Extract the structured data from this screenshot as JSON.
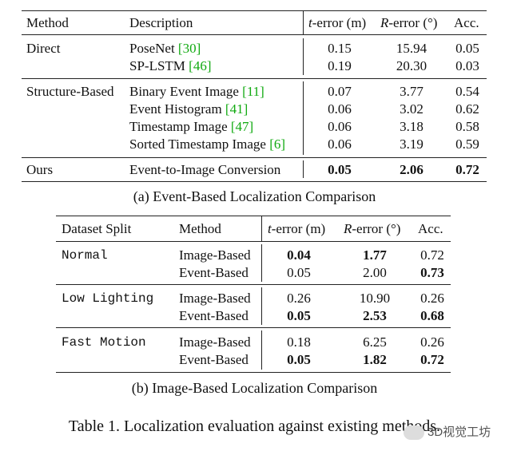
{
  "table_a": {
    "headers": {
      "method": "Method",
      "description": "Description",
      "t_error_var": "t",
      "t_error_rest": "-error (m)",
      "r_error_var": "R",
      "r_error_rest": "-error (°)",
      "acc": "Acc."
    },
    "groups": [
      {
        "method": "Direct",
        "rows": [
          {
            "desc": "PoseNet ",
            "ref": "[30]",
            "t": "0.15",
            "r": "15.94",
            "acc": "0.05"
          },
          {
            "desc": "SP-LSTM ",
            "ref": "[46]",
            "t": "0.19",
            "r": "20.30",
            "acc": "0.03"
          }
        ]
      },
      {
        "method": "Structure-Based",
        "rows": [
          {
            "desc": "Binary Event Image ",
            "ref": "[11]",
            "t": "0.07",
            "r": "3.77",
            "acc": "0.54"
          },
          {
            "desc": "Event Histogram ",
            "ref": "[41]",
            "t": "0.06",
            "r": "3.02",
            "acc": "0.62"
          },
          {
            "desc": "Timestamp Image ",
            "ref": "[47]",
            "t": "0.06",
            "r": "3.18",
            "acc": "0.58"
          },
          {
            "desc": "Sorted Timestamp Image ",
            "ref": "[6]",
            "t": "0.06",
            "r": "3.19",
            "acc": "0.59"
          }
        ]
      },
      {
        "method": "Ours",
        "rows": [
          {
            "desc": "Event-to-Image Conversion",
            "ref": "",
            "t": "0.05",
            "r": "2.06",
            "acc": "0.72"
          }
        ]
      }
    ],
    "caption": "(a) Event-Based Localization Comparison"
  },
  "table_b": {
    "headers": {
      "split": "Dataset Split",
      "method": "Method",
      "t_error_var": "t",
      "t_error_rest": "-error (m)",
      "r_error_var": "R",
      "r_error_rest": "-error (°)",
      "acc": "Acc."
    },
    "groups": [
      {
        "split": "Normal",
        "rows": [
          {
            "method": "Image-Based",
            "t": "0.04",
            "r": "1.77",
            "acc": "0.72"
          },
          {
            "method": "Event-Based",
            "t": "0.05",
            "r": "2.00",
            "acc": "0.73"
          }
        ]
      },
      {
        "split": "Low Lighting",
        "rows": [
          {
            "method": "Image-Based",
            "t": "0.26",
            "r": "10.90",
            "acc": "0.26"
          },
          {
            "method": "Event-Based",
            "t": "0.05",
            "r": "2.53",
            "acc": "0.68"
          }
        ]
      },
      {
        "split": "Fast Motion",
        "rows": [
          {
            "method": "Image-Based",
            "t": "0.18",
            "r": "6.25",
            "acc": "0.26"
          },
          {
            "method": "Event-Based",
            "t": "0.05",
            "r": "1.82",
            "acc": "0.72"
          }
        ]
      }
    ],
    "caption": "(b) Image-Based Localization Comparison"
  },
  "table_caption": "Table 1. Localization evaluation against existing methods.",
  "watermark": "3D视觉工坊"
}
